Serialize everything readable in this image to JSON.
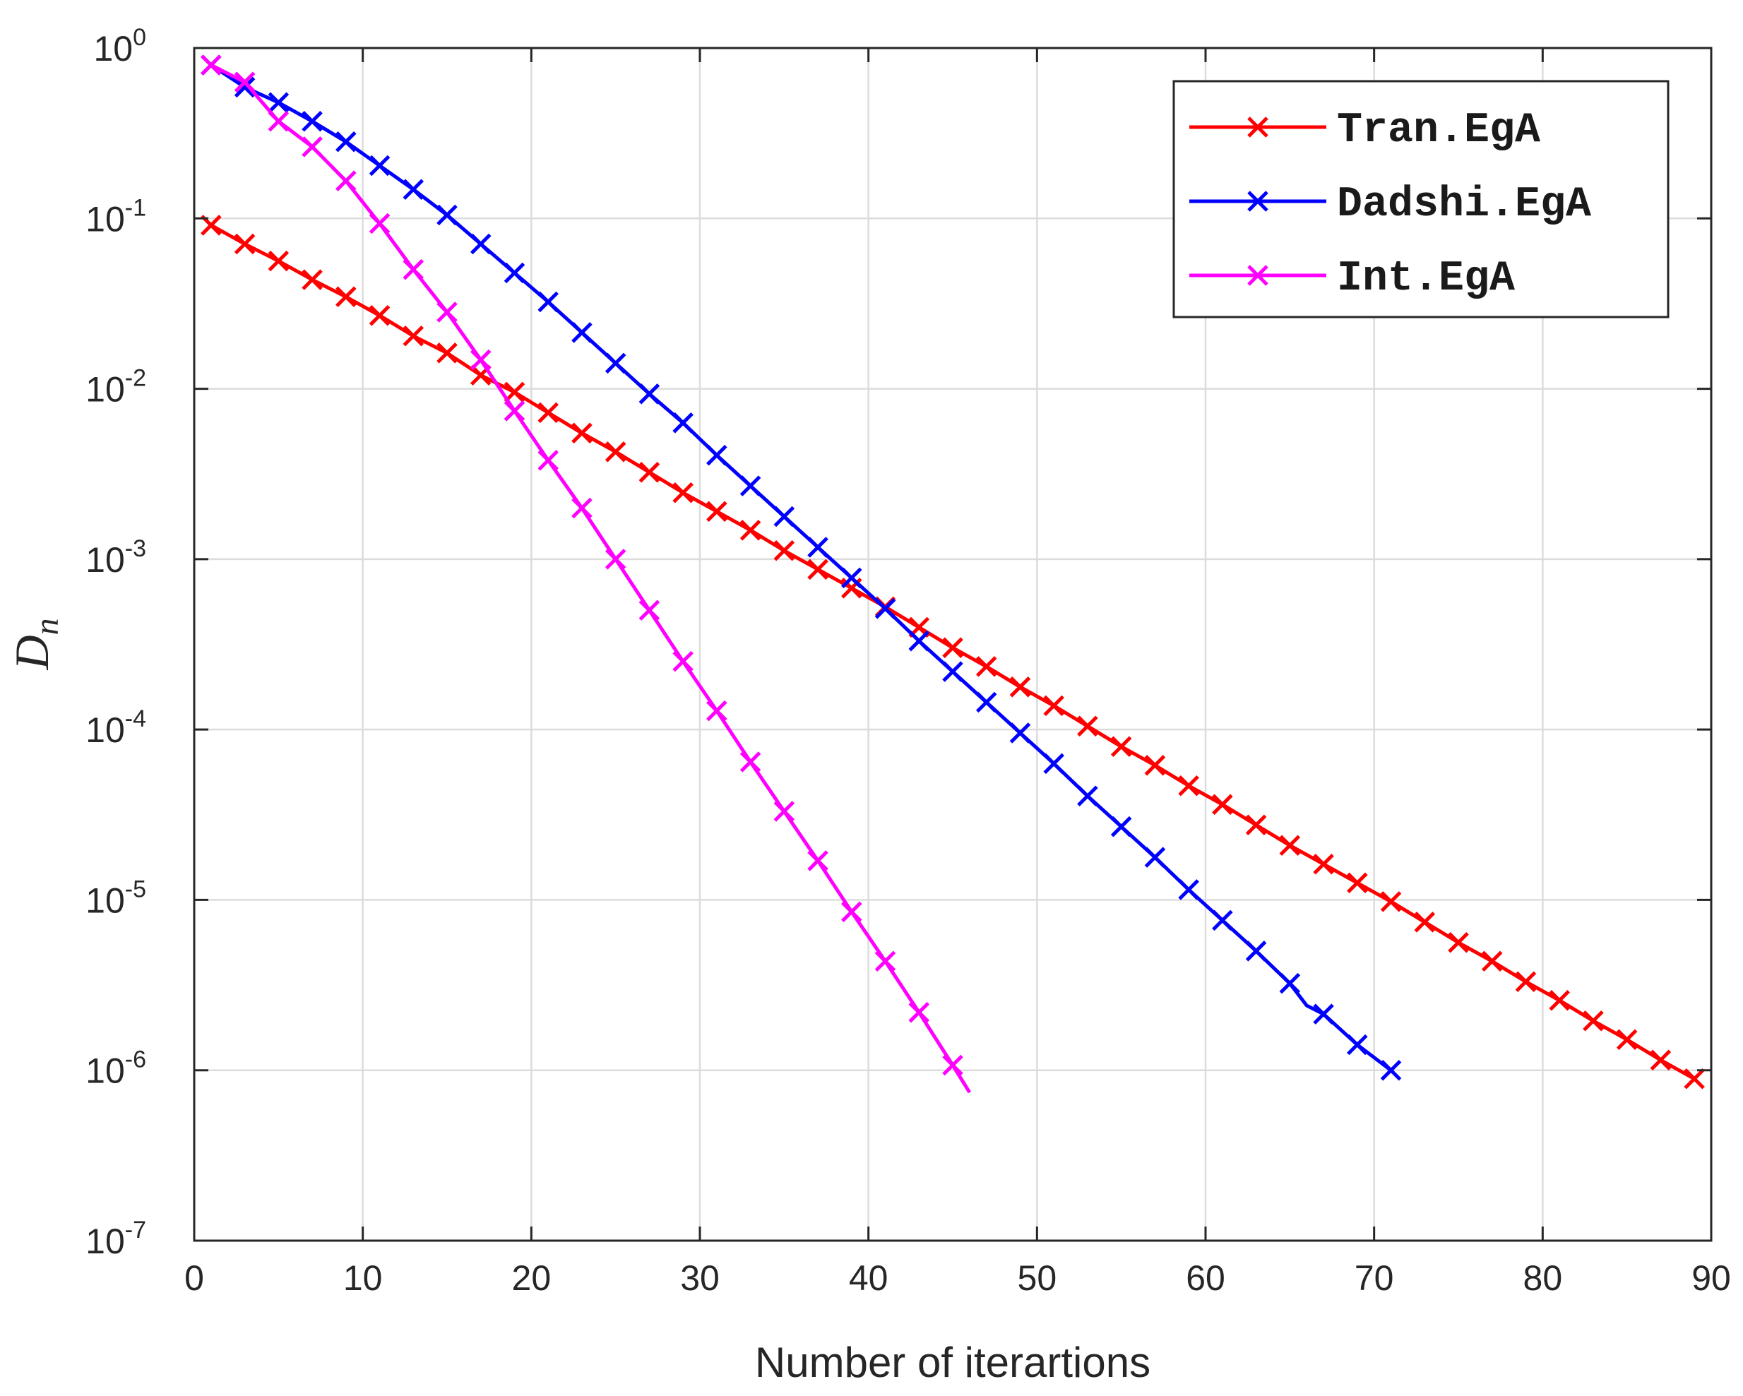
{
  "chart_data": {
    "type": "line",
    "title": "",
    "xlabel": "Number of iterartions",
    "ylabel": {
      "base": "D",
      "subscript": "n"
    },
    "xlim": [
      0,
      90
    ],
    "ylim_log10": [
      -7,
      0
    ],
    "yscale": "log",
    "grid": true,
    "legend_position": "top-right",
    "x_ticks": [
      0,
      10,
      20,
      30,
      40,
      50,
      60,
      70,
      80,
      90
    ],
    "y_ticks": [
      {
        "base": "10",
        "exp": "0",
        "log10": 0
      },
      {
        "base": "10",
        "exp": "-1",
        "log10": -1
      },
      {
        "base": "10",
        "exp": "-2",
        "log10": -2
      },
      {
        "base": "10",
        "exp": "-3",
        "log10": -3
      },
      {
        "base": "10",
        "exp": "-4",
        "log10": -4
      },
      {
        "base": "10",
        "exp": "-5",
        "log10": -5
      },
      {
        "base": "10",
        "exp": "-6",
        "log10": -6
      },
      {
        "base": "10",
        "exp": "-7",
        "log10": -7
      }
    ],
    "series": [
      {
        "name": "Tran.EgA",
        "color": "#ff0000",
        "x": [
          1,
          3,
          5,
          7,
          9,
          11,
          13,
          15,
          17,
          19,
          21,
          23,
          25,
          27,
          29,
          31,
          33,
          35,
          37,
          39,
          41,
          43,
          45,
          47,
          49,
          51,
          53,
          55,
          57,
          59,
          61,
          63,
          65,
          67,
          69,
          71,
          73,
          75,
          77,
          79,
          81,
          83,
          85,
          87,
          89
        ],
        "log10": [
          -1.04,
          -1.15,
          -1.25,
          -1.36,
          -1.46,
          -1.57,
          -1.69,
          -1.79,
          -1.92,
          -2.02,
          -2.14,
          -2.26,
          -2.37,
          -2.49,
          -2.61,
          -2.72,
          -2.83,
          -2.95,
          -3.06,
          -3.17,
          -3.28,
          -3.4,
          -3.52,
          -3.63,
          -3.75,
          -3.86,
          -3.98,
          -4.1,
          -4.21,
          -4.33,
          -4.44,
          -4.56,
          -4.68,
          -4.79,
          -4.9,
          -5.01,
          -5.13,
          -5.25,
          -5.36,
          -5.48,
          -5.59,
          -5.71,
          -5.82,
          -5.94,
          -6.05
        ]
      },
      {
        "name": "Dadshi.EgA",
        "color": "#0000ff",
        "x": [
          1,
          3,
          5,
          7,
          9,
          11,
          13,
          15,
          17,
          19,
          21,
          23,
          25,
          27,
          29,
          31,
          33,
          35,
          37,
          39,
          41,
          43,
          45,
          47,
          49,
          51,
          53,
          55,
          57,
          59,
          61,
          63,
          65,
          66,
          67,
          69,
          71
        ],
        "log10": [
          -0.1,
          -0.23,
          -0.32,
          -0.43,
          -0.55,
          -0.69,
          -0.83,
          -0.98,
          -1.15,
          -1.32,
          -1.49,
          -1.67,
          -1.85,
          -2.03,
          -2.2,
          -2.39,
          -2.57,
          -2.75,
          -2.93,
          -3.11,
          -3.29,
          -3.48,
          -3.66,
          -3.84,
          -4.02,
          -4.2,
          -4.39,
          -4.57,
          -4.75,
          -4.94,
          -5.12,
          -5.3,
          -5.49,
          -5.62,
          -5.67,
          -5.85,
          -6.0
        ]
      },
      {
        "name": "Int.EgA",
        "color": "#ff00ff",
        "x": [
          1,
          3,
          5,
          7,
          9,
          11,
          13,
          15,
          17,
          19,
          21,
          23,
          25,
          27,
          29,
          31,
          33,
          35,
          37,
          39,
          41,
          43,
          45,
          46
        ],
        "log10": [
          -0.1,
          -0.2,
          -0.43,
          -0.58,
          -0.78,
          -1.03,
          -1.3,
          -1.55,
          -1.83,
          -2.13,
          -2.42,
          -2.7,
          -3.0,
          -3.3,
          -3.6,
          -3.89,
          -4.19,
          -4.48,
          -4.77,
          -5.07,
          -5.36,
          -5.66,
          -5.97,
          -6.13
        ]
      }
    ]
  }
}
